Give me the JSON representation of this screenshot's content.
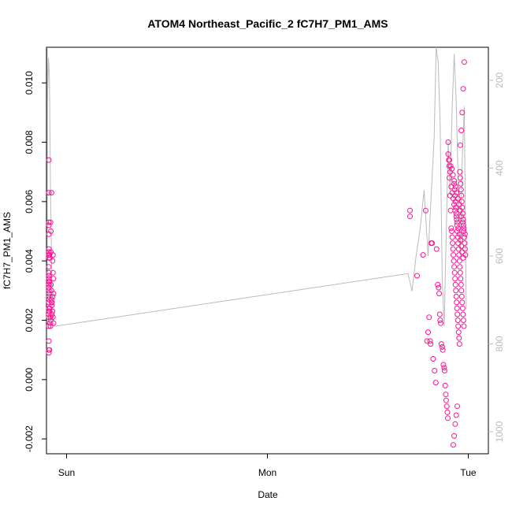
{
  "chart_data": {
    "type": "scatter",
    "title": "ATOM4 Northeast_Pacific_2 fC7H7_PM1_AMS",
    "xlabel": "Date",
    "ylabel": "fC7H7_PM1_AMS",
    "x_ticks": [
      {
        "label": "Sun",
        "t": 0.0
      },
      {
        "label": "Mon",
        "t": 1.0
      },
      {
        "label": "Tue",
        "t": 2.0
      }
    ],
    "xlim": [
      -0.1,
      2.1
    ],
    "ylim": [
      -0.0025,
      0.0112
    ],
    "y_ticks": [
      {
        "label": "-0.002",
        "v": -0.002
      },
      {
        "label": "0.000",
        "v": 0.0
      },
      {
        "label": "0.002",
        "v": 0.002
      },
      {
        "label": "0.004",
        "v": 0.004
      },
      {
        "label": "0.006",
        "v": 0.006
      },
      {
        "label": "0.008",
        "v": 0.008
      },
      {
        "label": "0.010",
        "v": 0.01
      }
    ],
    "y2_lim": [
      1050,
      125
    ],
    "y2_ticks": [
      {
        "label": "200",
        "v": 200
      },
      {
        "label": "400",
        "v": 400
      },
      {
        "label": "600",
        "v": 600
      },
      {
        "label": "800",
        "v": 800
      },
      {
        "label": "1000",
        "v": 1000
      }
    ],
    "grid": false,
    "series": [
      {
        "color": "#ff1493",
        "marker": "open-circle",
        "x": [
          -0.115,
          -0.115,
          -0.112,
          -0.112,
          -0.11,
          -0.11,
          -0.108,
          -0.108,
          -0.105,
          -0.105,
          -0.1,
          -0.1,
          -0.098,
          -0.098,
          -0.095,
          -0.095,
          -0.092,
          -0.092,
          -0.09,
          -0.09,
          -0.088,
          -0.088,
          -0.085,
          -0.085,
          -0.083,
          -0.083,
          -0.08,
          -0.08,
          -0.078,
          -0.078,
          -0.075,
          -0.075,
          -0.073,
          -0.073,
          -0.07,
          -0.07,
          -0.068,
          -0.068,
          -0.065,
          -0.065,
          -0.115,
          -0.112,
          -0.11,
          -0.1,
          -0.095,
          -0.09,
          -0.085,
          -0.08,
          -0.075,
          -0.07,
          -0.108,
          -0.098,
          -0.088,
          -0.078,
          -0.068,
          -0.105,
          -0.092,
          -0.083,
          -0.073,
          -0.065,
          -0.095,
          -0.09,
          -0.085,
          -0.08,
          -0.075,
          1.71,
          1.71,
          1.745,
          1.775,
          1.788,
          1.805,
          1.815,
          1.82,
          1.8,
          1.795,
          1.81,
          1.812,
          1.825,
          1.832,
          1.838,
          1.842,
          1.848,
          1.852,
          1.855,
          1.858,
          1.86,
          1.863,
          1.866,
          1.87,
          1.873,
          1.876,
          1.88,
          1.882,
          1.885,
          1.888,
          1.89,
          1.893,
          1.896,
          1.898,
          1.9,
          1.903,
          1.906,
          1.909,
          1.912,
          1.915,
          1.918,
          1.92,
          1.922,
          1.924,
          1.926,
          1.928,
          1.93,
          1.932,
          1.934,
          1.936,
          1.938,
          1.94,
          1.942,
          1.944,
          1.946,
          1.948,
          1.95,
          1.952,
          1.954,
          1.956,
          1.958,
          1.96,
          1.962,
          1.964,
          1.966,
          1.968,
          1.97,
          1.972,
          1.974,
          1.976,
          1.978,
          1.98,
          1.982,
          1.984,
          1.986,
          1.905,
          1.91,
          1.915,
          1.92,
          1.925,
          1.93,
          1.935,
          1.94,
          1.945,
          1.95,
          1.955,
          1.96,
          1.965,
          1.97,
          1.975,
          1.9,
          1.906,
          1.912,
          1.918,
          1.924,
          1.93,
          1.936,
          1.942,
          1.948,
          1.954,
          1.96,
          1.966,
          1.972,
          1.978,
          1.984,
          1.98,
          1.975,
          1.97,
          1.965,
          1.96,
          1.93,
          1.932,
          1.934,
          1.936,
          1.938,
          1.94,
          1.942,
          1.944,
          1.946,
          1.948,
          1.95,
          1.952,
          1.954,
          1.956,
          1.958,
          1.96,
          1.962,
          1.964,
          1.966,
          1.968,
          1.97,
          1.972,
          1.974,
          1.976,
          1.978,
          1.925,
          1.93,
          1.935,
          1.94,
          1.945
        ],
        "y": [
          0.0031,
          0.0021,
          0.0033,
          0.0028,
          0.0026,
          0.0034,
          0.0018,
          0.0029,
          0.0041,
          0.0023,
          0.0043,
          0.0042,
          0.0049,
          0.0052,
          0.0031,
          0.0038,
          0.0063,
          0.0074,
          0.0053,
          0.0042,
          0.0035,
          0.0027,
          0.0033,
          0.0023,
          0.0041,
          0.0024,
          0.002,
          0.0018,
          0.0043,
          0.005,
          0.003,
          0.0026,
          0.0022,
          0.0025,
          0.0028,
          0.004,
          0.0042,
          0.0036,
          0.0034,
          0.0019,
          0.001,
          0.0024,
          0.0032,
          0.0036,
          0.0009,
          0.0013,
          0.001,
          0.0021,
          0.0027,
          0.0023,
          0.003,
          0.0042,
          0.0044,
          0.0032,
          0.0021,
          0.0034,
          0.0023,
          0.0019,
          0.0026,
          0.0029,
          0.0022,
          0.0035,
          0.0042,
          0.0053,
          0.0063,
          0.0057,
          0.0055,
          0.0035,
          0.0042,
          0.0057,
          0.0021,
          0.0046,
          0.0046,
          0.0016,
          0.0013,
          0.0013,
          0.0012,
          0.0007,
          0.0003,
          -0.0001,
          0.0044,
          0.0032,
          0.0031,
          0.0029,
          0.0022,
          0.002,
          0.0019,
          0.0012,
          0.0011,
          0.001,
          0.0005,
          0.0004,
          0.0003,
          -0.0002,
          -0.0005,
          -0.0007,
          -0.0009,
          -0.0011,
          -0.0013,
          0.008,
          0.0074,
          0.0068,
          0.0062,
          0.0057,
          0.0051,
          0.005,
          0.0048,
          0.0046,
          0.0044,
          0.0042,
          0.004,
          0.0038,
          0.0036,
          0.0034,
          0.0032,
          0.003,
          0.0028,
          0.0026,
          0.0024,
          0.0022,
          0.002,
          0.0018,
          0.0016,
          0.0014,
          0.0012,
          0.007,
          0.0068,
          0.0066,
          0.0064,
          0.0062,
          0.006,
          0.0058,
          0.0056,
          0.0054,
          0.0052,
          0.005,
          0.0048,
          0.0046,
          0.0044,
          0.0042,
          0.0072,
          0.007,
          0.0065,
          0.0063,
          0.0061,
          0.0059,
          0.0057,
          0.0055,
          0.0053,
          0.0051,
          0.0049,
          0.0047,
          0.0045,
          0.0043,
          0.0041,
          0.0076,
          0.0074,
          0.0072,
          0.0071,
          0.0069,
          0.0067,
          0.0065,
          0.0063,
          0.0061,
          0.0059,
          0.0057,
          0.0055,
          0.0053,
          0.0051,
          0.0049,
          0.0107,
          0.0098,
          0.009,
          0.0084,
          0.0079,
          0.0066,
          0.0064,
          0.0062,
          0.006,
          0.0058,
          0.0056,
          0.0054,
          0.0052,
          0.005,
          0.0048,
          0.0046,
          0.0044,
          0.0042,
          0.004,
          0.0038,
          0.0036,
          0.0034,
          0.0032,
          0.003,
          0.0028,
          0.0026,
          0.0024,
          0.0022,
          0.002,
          0.0018,
          -0.0022,
          -0.0019,
          -0.0015,
          -0.0012,
          -0.0009
        ]
      },
      {
        "color": "#bbbbbb",
        "marker": "line",
        "axis": "right",
        "x": [
          -0.12,
          -0.115,
          -0.11,
          -0.105,
          -0.1,
          -0.095,
          -0.09,
          -0.085,
          -0.08,
          -0.075,
          -0.07,
          -0.065,
          -0.06,
          1.7,
          1.72,
          1.74,
          1.76,
          1.78,
          1.8,
          1.81,
          1.82,
          1.83,
          1.84,
          1.85,
          1.86,
          1.87,
          1.88,
          1.89,
          1.9,
          1.91,
          1.92,
          1.93,
          1.94,
          1.95,
          1.96,
          1.97,
          1.98,
          1.99
        ],
        "y": [
          700,
          400,
          120,
          300,
          500,
          250,
          150,
          200,
          450,
          600,
          720,
          750,
          760,
          640,
          680,
          600,
          540,
          450,
          600,
          510,
          420,
          330,
          120,
          160,
          300,
          650,
          760,
          560,
          340,
          450,
          260,
          140,
          250,
          430,
          600,
          380,
          260,
          720
        ]
      }
    ]
  }
}
